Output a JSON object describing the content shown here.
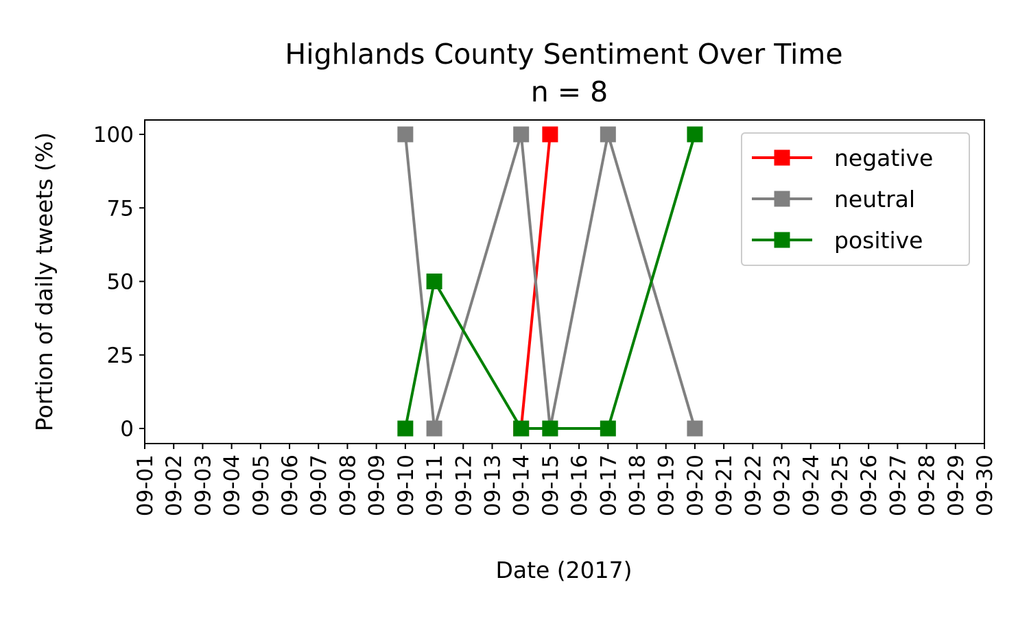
{
  "chart_data": {
    "type": "line",
    "title": "Highlands County Sentiment Over Time",
    "subtitle": "n = 8",
    "xlabel": "Date (2017)",
    "ylabel": "Portion of daily tweets (%)",
    "x": [
      "09-01",
      "09-02",
      "09-03",
      "09-04",
      "09-05",
      "09-06",
      "09-07",
      "09-08",
      "09-09",
      "09-10",
      "09-11",
      "09-12",
      "09-13",
      "09-14",
      "09-15",
      "09-16",
      "09-17",
      "09-18",
      "09-19",
      "09-20",
      "09-21",
      "09-22",
      "09-23",
      "09-24",
      "09-25",
      "09-26",
      "09-27",
      "09-28",
      "09-29",
      "09-30"
    ],
    "yticks": [
      0,
      25,
      50,
      75,
      100
    ],
    "ylim": [
      -5,
      105
    ],
    "grid": false,
    "legend_position": "top-right",
    "series": [
      {
        "name": "negative",
        "color": "#ff0000",
        "points": [
          {
            "x": "09-14",
            "y": 0
          },
          {
            "x": "09-15",
            "y": 100
          }
        ]
      },
      {
        "name": "neutral",
        "color": "#808080",
        "points": [
          {
            "x": "09-10",
            "y": 100
          },
          {
            "x": "09-11",
            "y": 0
          },
          {
            "x": "09-14",
            "y": 100
          },
          {
            "x": "09-15",
            "y": 0
          },
          {
            "x": "09-17",
            "y": 100
          },
          {
            "x": "09-20",
            "y": 0
          }
        ]
      },
      {
        "name": "positive",
        "color": "#008000",
        "points": [
          {
            "x": "09-10",
            "y": 0
          },
          {
            "x": "09-11",
            "y": 50
          },
          {
            "x": "09-14",
            "y": 0
          },
          {
            "x": "09-15",
            "y": 0
          },
          {
            "x": "09-17",
            "y": 0
          },
          {
            "x": "09-20",
            "y": 100
          }
        ]
      }
    ]
  }
}
